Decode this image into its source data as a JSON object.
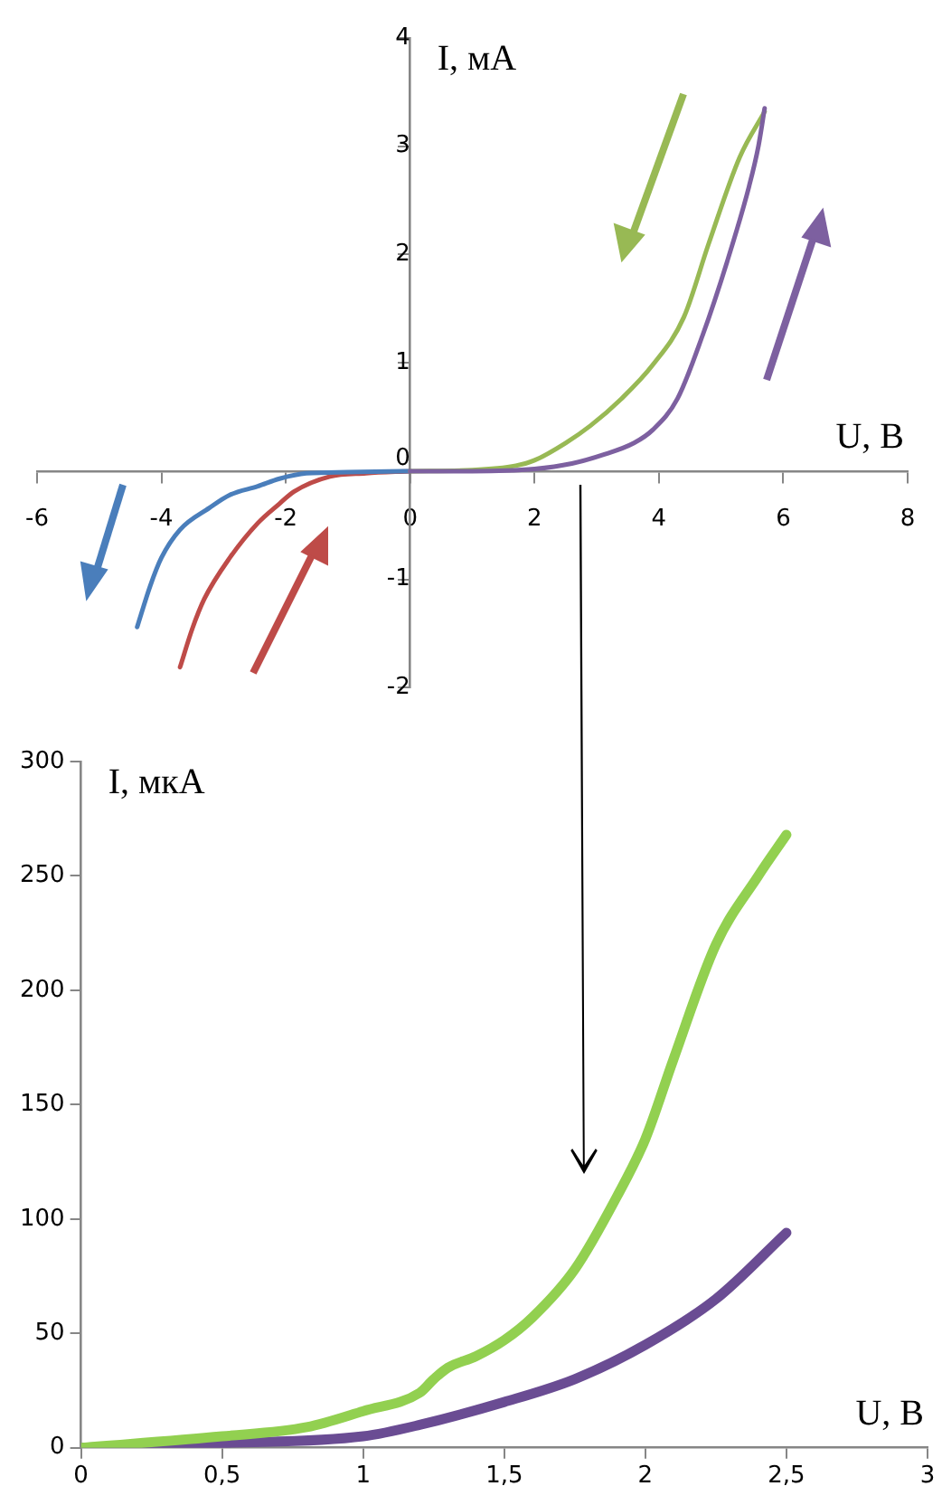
{
  "chart_data": [
    {
      "type": "line",
      "xlabel": "U, В",
      "ylabel": "I, мА",
      "xlim": [
        -6,
        8
      ],
      "ylim": [
        -2,
        4
      ],
      "xticks": [
        -6,
        -4,
        -2,
        0,
        2,
        4,
        6,
        8
      ],
      "yticks": [
        -2,
        -1,
        0,
        1,
        2,
        3,
        4
      ],
      "grid": false,
      "legend": false,
      "marker": "none",
      "series": [
        {
          "color": "#7d60a0",
          "x": [
            0,
            1,
            2,
            2.6,
            3.1,
            3.6,
            3.9,
            4.3,
            4.7,
            5.1,
            5.45,
            5.6,
            5.7
          ],
          "values": [
            0,
            0,
            0.02,
            0.07,
            0.15,
            0.26,
            0.38,
            0.67,
            1.25,
            1.94,
            2.63,
            3.0,
            3.35
          ]
        },
        {
          "color": "#98b954",
          "x": [
            5.7,
            5.3,
            4.8,
            4.4,
            3.9,
            3.4,
            2.9,
            2.5,
            2.0,
            1.7,
            1,
            0
          ],
          "values": [
            3.32,
            2.9,
            2.1,
            1.42,
            0.98,
            0.67,
            0.42,
            0.26,
            0.1,
            0.05,
            0.01,
            0
          ]
        },
        {
          "color": "#4a7ebb",
          "x": [
            0,
            -1,
            -1.67,
            -2.1,
            -2.45,
            -2.9,
            -3.23,
            -3.7,
            -4.0,
            -4.18,
            -4.39
          ],
          "values": [
            0,
            -0.01,
            -0.02,
            -0.07,
            -0.14,
            -0.22,
            -0.34,
            -0.54,
            -0.8,
            -1.06,
            -1.44
          ]
        },
        {
          "color": "#be4b48",
          "x": [
            -3.7,
            -3.5,
            -3.31,
            -2.9,
            -2.45,
            -2.1,
            -1.87,
            -1.29,
            -0.71,
            0
          ],
          "values": [
            -1.81,
            -1.45,
            -1.18,
            -0.8,
            -0.48,
            -0.3,
            -0.19,
            -0.05,
            -0.02,
            0
          ]
        }
      ]
    },
    {
      "type": "line",
      "xlabel": "U, В",
      "ylabel": "I, мкА",
      "xlim": [
        0,
        3
      ],
      "ylim": [
        0,
        300
      ],
      "xticks": [
        0,
        {
          "value": 0.5,
          "label": "0,5"
        },
        1,
        {
          "value": 1.5,
          "label": "1,5"
        },
        2,
        {
          "value": 2.5,
          "label": "2,5"
        },
        3
      ],
      "yticks": [
        0,
        50,
        100,
        150,
        200,
        250,
        300
      ],
      "grid": false,
      "legend": false,
      "marker": "none",
      "series": [
        {
          "color": "#92d050",
          "x": [
            0,
            0.5,
            0.8,
            1,
            1.2,
            1.25,
            1.3,
            1.4,
            1.5,
            1.6,
            1.75,
            1.9,
            2,
            2.1,
            2.25,
            2.4,
            2.5
          ],
          "values": [
            0,
            5,
            9,
            16,
            24,
            30,
            35,
            40,
            47,
            57,
            78,
            110,
            135,
            170,
            220,
            250,
            268
          ]
        },
        {
          "color": "#6a4c93",
          "x": [
            0,
            0.5,
            1,
            1.2,
            1.5,
            1.75,
            2,
            2.25,
            2.5
          ],
          "values": [
            0,
            2,
            5,
            10,
            20,
            30,
            45,
            65,
            94
          ]
        }
      ]
    }
  ]
}
